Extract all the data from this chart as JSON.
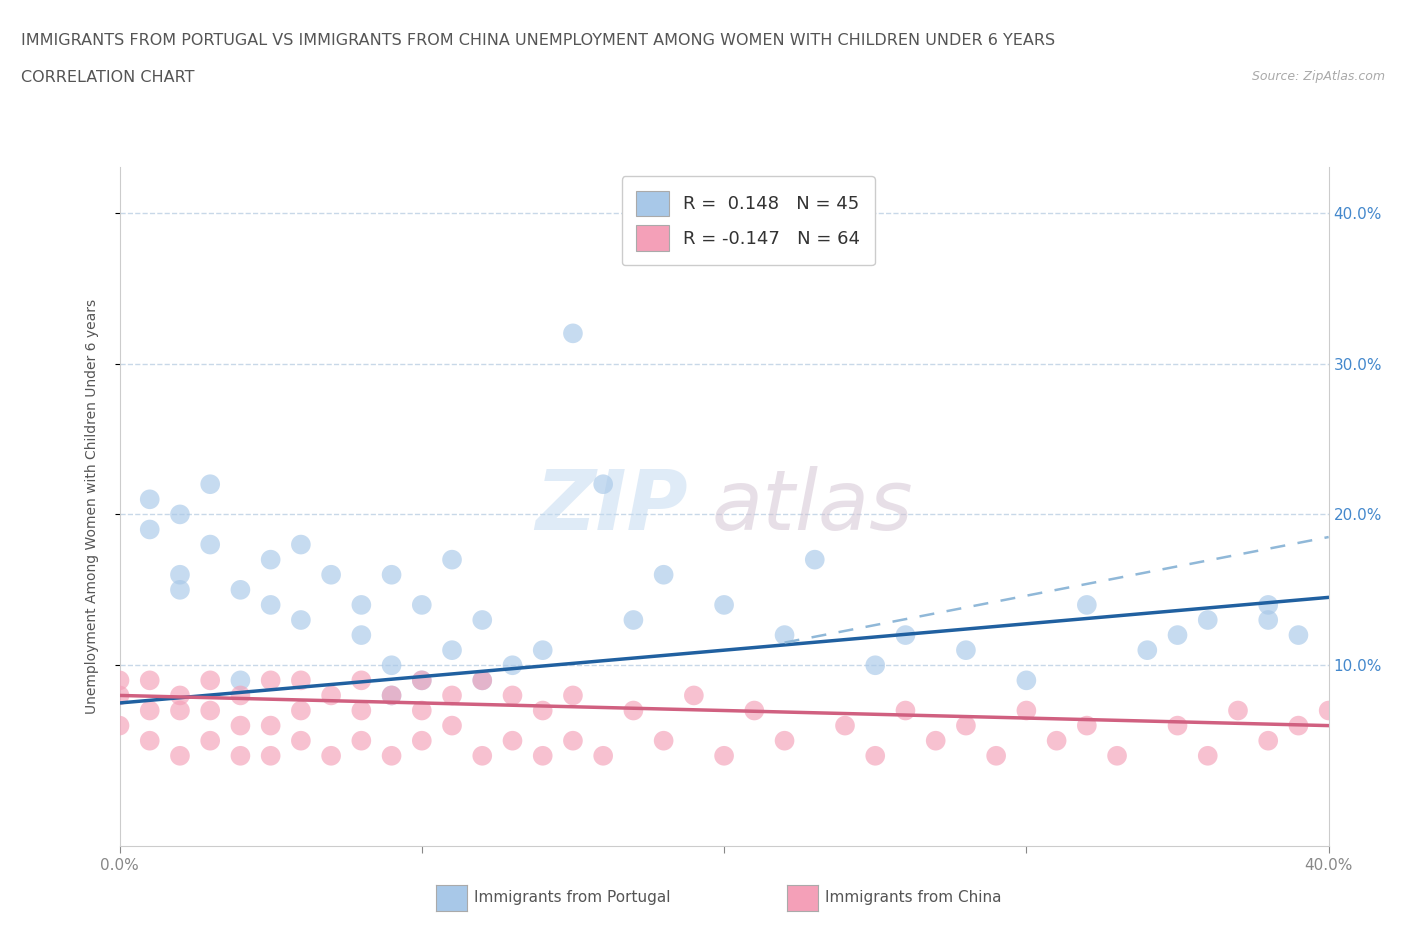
{
  "title_line1": "IMMIGRANTS FROM PORTUGAL VS IMMIGRANTS FROM CHINA UNEMPLOYMENT AMONG WOMEN WITH CHILDREN UNDER 6 YEARS",
  "title_line2": "CORRELATION CHART",
  "source_text": "Source: ZipAtlas.com",
  "ylabel": "Unemployment Among Women with Children Under 6 years",
  "xlim": [
    0.0,
    0.4
  ],
  "ylim": [
    -0.02,
    0.43
  ],
  "xtick_vals": [
    0.0,
    0.1,
    0.2,
    0.3,
    0.4
  ],
  "xtick_labels": [
    "0.0%",
    "",
    "",
    "",
    "40.0%"
  ],
  "ytick_vals": [
    0.1,
    0.2,
    0.3,
    0.4
  ],
  "ytick_labels": [
    "10.0%",
    "20.0%",
    "30.0%",
    "40.0%"
  ],
  "watermark_zip": "ZIP",
  "watermark_atlas": "atlas",
  "legend_label1": "R =  0.148   N = 45",
  "legend_label2": "R = -0.147   N = 64",
  "legend_bottom_label1": "Immigrants from Portugal",
  "legend_bottom_label2": "Immigrants from China",
  "portugal_color": "#a8c8e8",
  "china_color": "#f4a0b8",
  "portugal_line_color": "#2060a0",
  "china_line_color": "#d06080",
  "dashed_line_color": "#90b8d8",
  "background_color": "#ffffff",
  "grid_color": "#c8d8e8",
  "portugal_x": [
    0.01,
    0.01,
    0.02,
    0.02,
    0.02,
    0.03,
    0.03,
    0.04,
    0.04,
    0.05,
    0.05,
    0.06,
    0.06,
    0.07,
    0.08,
    0.08,
    0.09,
    0.09,
    0.09,
    0.1,
    0.1,
    0.11,
    0.11,
    0.12,
    0.12,
    0.13,
    0.14,
    0.15,
    0.16,
    0.17,
    0.18,
    0.2,
    0.22,
    0.23,
    0.25,
    0.26,
    0.28,
    0.3,
    0.32,
    0.34,
    0.35,
    0.36,
    0.38,
    0.38,
    0.39
  ],
  "portugal_y": [
    0.19,
    0.21,
    0.15,
    0.16,
    0.2,
    0.18,
    0.22,
    0.09,
    0.15,
    0.14,
    0.17,
    0.13,
    0.18,
    0.16,
    0.12,
    0.14,
    0.08,
    0.1,
    0.16,
    0.09,
    0.14,
    0.11,
    0.17,
    0.09,
    0.13,
    0.1,
    0.11,
    0.32,
    0.22,
    0.13,
    0.16,
    0.14,
    0.12,
    0.17,
    0.1,
    0.12,
    0.11,
    0.09,
    0.14,
    0.11,
    0.12,
    0.13,
    0.13,
    0.14,
    0.12
  ],
  "china_x": [
    0.0,
    0.0,
    0.0,
    0.01,
    0.01,
    0.01,
    0.02,
    0.02,
    0.02,
    0.03,
    0.03,
    0.03,
    0.04,
    0.04,
    0.04,
    0.05,
    0.05,
    0.05,
    0.06,
    0.06,
    0.06,
    0.07,
    0.07,
    0.08,
    0.08,
    0.08,
    0.09,
    0.09,
    0.1,
    0.1,
    0.1,
    0.11,
    0.11,
    0.12,
    0.12,
    0.13,
    0.13,
    0.14,
    0.14,
    0.15,
    0.15,
    0.16,
    0.17,
    0.18,
    0.19,
    0.2,
    0.21,
    0.22,
    0.24,
    0.25,
    0.26,
    0.27,
    0.28,
    0.29,
    0.3,
    0.31,
    0.32,
    0.33,
    0.35,
    0.36,
    0.37,
    0.38,
    0.39,
    0.4
  ],
  "china_y": [
    0.06,
    0.08,
    0.09,
    0.05,
    0.07,
    0.09,
    0.04,
    0.07,
    0.08,
    0.05,
    0.07,
    0.09,
    0.04,
    0.06,
    0.08,
    0.04,
    0.06,
    0.09,
    0.05,
    0.07,
    0.09,
    0.04,
    0.08,
    0.05,
    0.07,
    0.09,
    0.04,
    0.08,
    0.05,
    0.07,
    0.09,
    0.06,
    0.08,
    0.04,
    0.09,
    0.05,
    0.08,
    0.04,
    0.07,
    0.05,
    0.08,
    0.04,
    0.07,
    0.05,
    0.08,
    0.04,
    0.07,
    0.05,
    0.06,
    0.04,
    0.07,
    0.05,
    0.06,
    0.04,
    0.07,
    0.05,
    0.06,
    0.04,
    0.06,
    0.04,
    0.07,
    0.05,
    0.06,
    0.07
  ],
  "port_line_x0": 0.0,
  "port_line_y0": 0.075,
  "port_line_x1": 0.4,
  "port_line_y1": 0.145,
  "china_line_x0": 0.0,
  "china_line_y0": 0.08,
  "china_line_x1": 0.4,
  "china_line_y1": 0.06,
  "dash_line_x0": 0.22,
  "dash_line_y0": 0.115,
  "dash_line_x1": 0.4,
  "dash_line_y1": 0.185,
  "title_fontsize": 11.5,
  "axis_label_fontsize": 10,
  "tick_fontsize": 11
}
